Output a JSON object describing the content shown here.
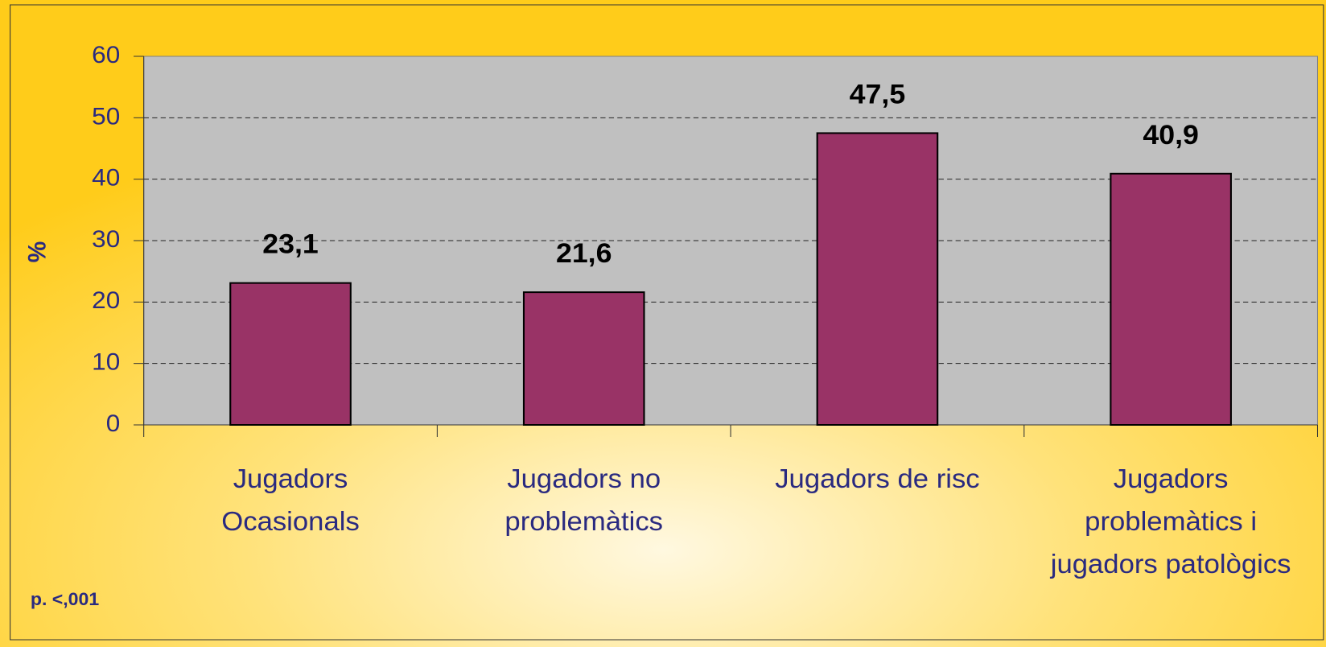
{
  "chart_data": {
    "type": "bar",
    "y_label": "%",
    "categories": [
      [
        "Jugadors",
        "Ocasionals"
      ],
      [
        "Jugadors no",
        "problemàtics"
      ],
      [
        "Jugadors de risc"
      ],
      [
        "Jugadors",
        "problemàtics i",
        "jugadors patològics"
      ]
    ],
    "values": [
      23.1,
      21.6,
      47.5,
      40.9
    ],
    "value_labels": [
      "23,1",
      "21,6",
      "47,5",
      "40,9"
    ],
    "color": "#993366",
    "ylim": [
      0,
      60
    ],
    "yticks": [
      0,
      10,
      20,
      30,
      40,
      50,
      60
    ],
    "grid": true,
    "annotation": "p. <,001"
  }
}
